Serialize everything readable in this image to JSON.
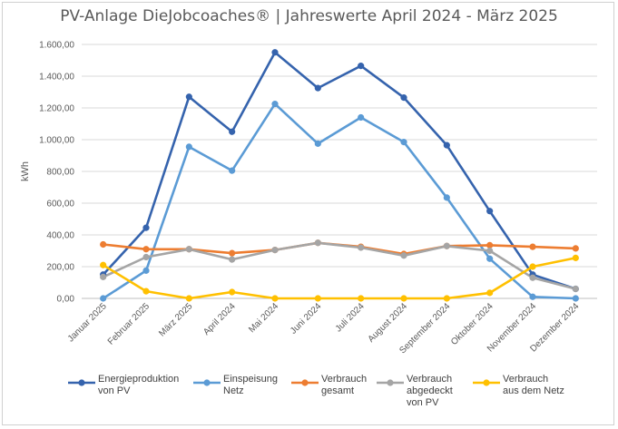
{
  "chart_data": {
    "type": "line",
    "title": "PV-Anlage DieJobcoaches® | Jahreswerte April 2024 - März 2025",
    "ylabel": "kWh",
    "xlabel": "",
    "ylim": [
      0,
      1600
    ],
    "y_ticks": [
      "0,00",
      "200,00",
      "400,00",
      "600,00",
      "800,00",
      "1.000,00",
      "1.200,00",
      "1.400,00",
      "1.600,00"
    ],
    "y_tick_values": [
      0,
      200,
      400,
      600,
      800,
      1000,
      1200,
      1400,
      1600
    ],
    "grid": true,
    "legend_position": "bottom",
    "categories": [
      "Januar 2025",
      "Februar 2025",
      "März 2025",
      "April 2024",
      "Mai 2024",
      "Juni 2024",
      "Juli 2024",
      "August 2024",
      "September 2024",
      "Oktober 2024",
      "November 2024",
      "Dezember 2024"
    ],
    "series": [
      {
        "name": "Energieproduktion\nvon PV",
        "color": "#3563ad",
        "values": [
          150,
          445,
          1270,
          1050,
          1550,
          1325,
          1465,
          1265,
          965,
          550,
          150,
          60
        ]
      },
      {
        "name": "Einspeisung\nNetz",
        "color": "#5b9bd5",
        "values": [
          0,
          175,
          955,
          805,
          1225,
          975,
          1140,
          985,
          635,
          250,
          10,
          0
        ]
      },
      {
        "name": "Verbrauch\ngesamt",
        "color": "#ed7d31",
        "values": [
          340,
          310,
          310,
          285,
          305,
          350,
          325,
          280,
          330,
          335,
          325,
          315
        ]
      },
      {
        "name": "Verbrauch\nabgedeckt\nvon PV",
        "color": "#a5a5a5",
        "values": [
          135,
          260,
          310,
          245,
          305,
          350,
          320,
          270,
          330,
          300,
          130,
          60
        ]
      },
      {
        "name": "Verbrauch\naus dem Netz",
        "color": "#ffc000",
        "values": [
          210,
          45,
          0,
          40,
          0,
          0,
          0,
          0,
          0,
          35,
          200,
          255
        ]
      }
    ]
  }
}
